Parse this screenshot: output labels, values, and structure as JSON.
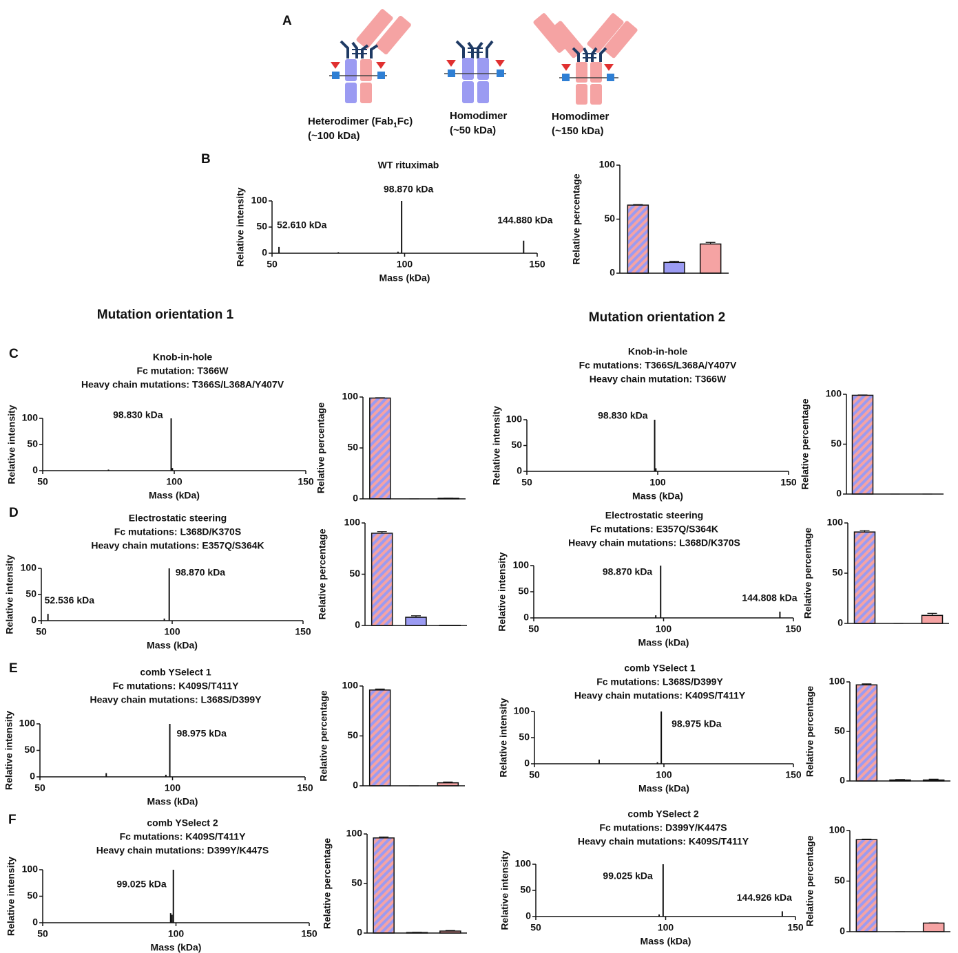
{
  "figure": {
    "panel_letters": [
      "A",
      "B",
      "C",
      "D",
      "E",
      "F"
    ],
    "orientation_titles": [
      "Mutation orientation 1",
      "Mutation orientation 2"
    ],
    "panel_a": {
      "heterodimer": {
        "name": "Heterodimer (Fab",
        "subscript": "1",
        "name_end": "Fc)",
        "size": "(~100 kDa)"
      },
      "homodimer_small": {
        "name": "Homodimer",
        "size": "(~50 kDa)"
      },
      "homodimer_large": {
        "name": "Homodimer",
        "size": "(~150 kDa)"
      }
    }
  },
  "chart_data": [
    {
      "type": "stem",
      "title": [
        "WT rituximab"
      ],
      "xlabel": "Mass (kDa)",
      "ylabel": "Relative intensity",
      "x": [
        52.61,
        75,
        97.5,
        98.87,
        144.88
      ],
      "values": [
        12,
        2,
        3,
        100,
        24
      ],
      "annotations": [
        "52.610 kDa",
        "98.870 kDa",
        "144.880 kDa"
      ],
      "xlim": [
        50,
        150
      ],
      "xticks": [
        50,
        100,
        150
      ],
      "ylim": [
        0,
        100
      ],
      "yticks": [
        0,
        50,
        100
      ],
      "color": "#111111"
    },
    {
      "type": "bar",
      "ylabel": "Relative percentage",
      "categories": [
        null,
        null,
        null
      ],
      "values": [
        63,
        10,
        27
      ],
      "errors": [
        0.5,
        1,
        1.5
      ],
      "colors": [
        "#9b9bf2",
        "#9b9bf2",
        "#f5a3a3"
      ],
      "ylim": [
        0,
        100
      ],
      "yticks": [
        0,
        50,
        100
      ]
    },
    {
      "type": "stem",
      "title": [
        "Knob-in-hole",
        "Fc mutation: T366W",
        "Heavy chain mutations: T366S/L368A/Y407V"
      ],
      "xlabel": "Mass (kDa)",
      "ylabel": "Relative intensity",
      "x": [
        75,
        98.83,
        99.3
      ],
      "values": [
        2,
        100,
        5
      ],
      "annotations": [
        "98.830 kDa"
      ],
      "xlim": [
        50,
        150
      ],
      "xticks": [
        50,
        100,
        150
      ],
      "ylim": [
        0,
        100
      ],
      "yticks": [
        0,
        50,
        100
      ],
      "color": "#111111"
    },
    {
      "type": "bar",
      "ylabel": "Relative percentage",
      "categories": [
        null,
        null,
        null
      ],
      "values": [
        99,
        0,
        0.5
      ],
      "errors": [
        0.3,
        0,
        0.2
      ],
      "colors": [
        "#9b9bf2",
        "#9b9bf2",
        "#f5a3a3"
      ],
      "ylim": [
        0,
        100
      ],
      "yticks": [
        0,
        50,
        100
      ]
    },
    {
      "type": "stem",
      "title": [
        "Knob-in-hole",
        "Fc mutations: T366S/L368A/Y407V",
        "Heavy chain mutation: T366W"
      ],
      "xlabel": "Mass (kDa)",
      "ylabel": "Relative intensity",
      "x": [
        98.83,
        99.3
      ],
      "values": [
        100,
        6
      ],
      "annotations": [
        "98.830 kDa"
      ],
      "xlim": [
        50,
        150
      ],
      "xticks": [
        50,
        100,
        150
      ],
      "ylim": [
        0,
        100
      ],
      "yticks": [
        0,
        50,
        100
      ],
      "color": "#111111"
    },
    {
      "type": "bar",
      "ylabel": "Relative percentage",
      "categories": [
        null,
        null,
        null
      ],
      "values": [
        99,
        0,
        0
      ],
      "errors": [
        0.3,
        0,
        0
      ],
      "colors": [
        "#9b9bf2",
        "#9b9bf2",
        "#f5a3a3"
      ],
      "ylim": [
        0,
        100
      ],
      "yticks": [
        0,
        50,
        100
      ]
    },
    {
      "type": "stem",
      "title": [
        "Electrostatic steering",
        "Fc mutations: L368D/K370S",
        "Heavy chain mutations: E357Q/S364K"
      ],
      "xlabel": "Mass (kDa)",
      "ylabel": "Relative intensity",
      "x": [
        52.536,
        97,
        98.87
      ],
      "values": [
        13,
        4,
        100
      ],
      "annotations": [
        "52.536 kDa",
        "98.870 kDa"
      ],
      "xlim": [
        50,
        150
      ],
      "xticks": [
        50,
        100,
        150
      ],
      "ylim": [
        0,
        100
      ],
      "yticks": [
        0,
        50,
        100
      ],
      "color": "#111111"
    },
    {
      "type": "bar",
      "ylabel": "Relative percentage",
      "categories": [
        null,
        null,
        null
      ],
      "values": [
        90,
        8,
        0.2
      ],
      "errors": [
        1.5,
        1.5,
        0
      ],
      "colors": [
        "#9b9bf2",
        "#9b9bf2",
        "#f5a3a3"
      ],
      "ylim": [
        0,
        100
      ],
      "yticks": [
        0,
        50,
        100
      ]
    },
    {
      "type": "stem",
      "title": [
        "Electrostatic steering",
        "Fc mutations: E357Q/S364K",
        "Heavy chain mutations: L368D/K370S"
      ],
      "xlabel": "Mass (kDa)",
      "ylabel": "Relative intensity",
      "x": [
        97,
        98.87,
        144.808
      ],
      "values": [
        5,
        100,
        12
      ],
      "annotations": [
        "98.870 kDa",
        "144.808 kDa"
      ],
      "xlim": [
        50,
        150
      ],
      "xticks": [
        50,
        100,
        150
      ],
      "ylim": [
        0,
        100
      ],
      "yticks": [
        0,
        50,
        100
      ],
      "color": "#111111"
    },
    {
      "type": "bar",
      "ylabel": "Relative percentage",
      "categories": [
        null,
        null,
        null
      ],
      "values": [
        91,
        0,
        8
      ],
      "errors": [
        1.5,
        0,
        2
      ],
      "colors": [
        "#9b9bf2",
        "#9b9bf2",
        "#f5a3a3"
      ],
      "ylim": [
        0,
        100
      ],
      "yticks": [
        0,
        50,
        100
      ]
    },
    {
      "type": "stem",
      "title": [
        "comb YSelect 1",
        "Fc mutations: K409S/T411Y",
        "Heavy chain mutations: L368S/D399Y"
      ],
      "xlabel": "Mass (kDa)",
      "ylabel": "Relative intensity",
      "x": [
        75,
        97.5,
        98.975
      ],
      "values": [
        7,
        4,
        100
      ],
      "annotations": [
        "98.975 kDa"
      ],
      "xlim": [
        50,
        150
      ],
      "xticks": [
        50,
        100,
        150
      ],
      "ylim": [
        0,
        100
      ],
      "yticks": [
        0,
        50,
        100
      ],
      "color": "#111111"
    },
    {
      "type": "bar",
      "ylabel": "Relative percentage",
      "categories": [
        null,
        null,
        null
      ],
      "values": [
        96,
        0,
        3
      ],
      "errors": [
        1,
        0,
        0.8
      ],
      "colors": [
        "#9b9bf2",
        "#9b9bf2",
        "#f5a3a3"
      ],
      "ylim": [
        0,
        100
      ],
      "yticks": [
        0,
        50,
        100
      ]
    },
    {
      "type": "stem",
      "title": [
        "comb YSelect 1",
        "Fc mutations: L368S/D399Y",
        "Heavy chain mutations: K409S/T411Y"
      ],
      "xlabel": "Mass (kDa)",
      "ylabel": "Relative intensity",
      "x": [
        75,
        97.5,
        98.975
      ],
      "values": [
        8,
        3,
        100
      ],
      "annotations": [
        "98.975 kDa"
      ],
      "xlim": [
        50,
        150
      ],
      "xticks": [
        50,
        100,
        150
      ],
      "ylim": [
        0,
        100
      ],
      "yticks": [
        0,
        50,
        100
      ],
      "color": "#111111"
    },
    {
      "type": "bar",
      "ylabel": "Relative percentage",
      "categories": [
        null,
        null,
        null
      ],
      "values": [
        97,
        1,
        1
      ],
      "errors": [
        1,
        0.5,
        0.8
      ],
      "colors": [
        "#9b9bf2",
        "#9b9bf2",
        "#f5a3a3"
      ],
      "ylim": [
        0,
        100
      ],
      "yticks": [
        0,
        50,
        100
      ]
    },
    {
      "type": "stem",
      "title": [
        "comb YSelect 2",
        "Fc mutations: K409S/T411Y",
        "Heavy chain mutations: D399Y/K447S"
      ],
      "xlabel": "Mass (kDa)",
      "ylabel": "Relative intensity",
      "x": [
        98,
        98.5,
        99.025
      ],
      "values": [
        18,
        15,
        100
      ],
      "annotations": [
        "99.025 kDa"
      ],
      "xlim": [
        50,
        150
      ],
      "xticks": [
        50,
        100,
        150
      ],
      "ylim": [
        0,
        100
      ],
      "yticks": [
        0,
        50,
        100
      ],
      "color": "#111111"
    },
    {
      "type": "bar",
      "ylabel": "Relative percentage",
      "categories": [
        null,
        null,
        null
      ],
      "values": [
        96,
        0.5,
        2
      ],
      "errors": [
        1,
        0.3,
        0.5
      ],
      "colors": [
        "#9b9bf2",
        "#9b9bf2",
        "#f5a3a3"
      ],
      "ylim": [
        0,
        100
      ],
      "yticks": [
        0,
        50,
        100
      ]
    },
    {
      "type": "stem",
      "title": [
        "comb YSelect 2",
        "Fc mutations: D399Y/K447S",
        "Heavy chain mutations: K409S/T411Y"
      ],
      "xlabel": "Mass (kDa)",
      "ylabel": "Relative intensity",
      "x": [
        97.5,
        99.025,
        144.926
      ],
      "values": [
        4,
        100,
        10
      ],
      "annotations": [
        "99.025 kDa",
        "144.926 kDa"
      ],
      "xlim": [
        50,
        150
      ],
      "xticks": [
        50,
        100,
        150
      ],
      "ylim": [
        0,
        100
      ],
      "yticks": [
        0,
        50,
        100
      ],
      "color": "#111111"
    },
    {
      "type": "bar",
      "ylabel": "Relative percentage",
      "categories": [
        null,
        null,
        null
      ],
      "values": [
        91,
        0,
        8.5
      ],
      "errors": [
        0.5,
        0,
        0.3
      ],
      "colors": [
        "#9b9bf2",
        "#9b9bf2",
        "#f5a3a3"
      ],
      "ylim": [
        0,
        100
      ],
      "yticks": [
        0,
        50,
        100
      ]
    }
  ]
}
